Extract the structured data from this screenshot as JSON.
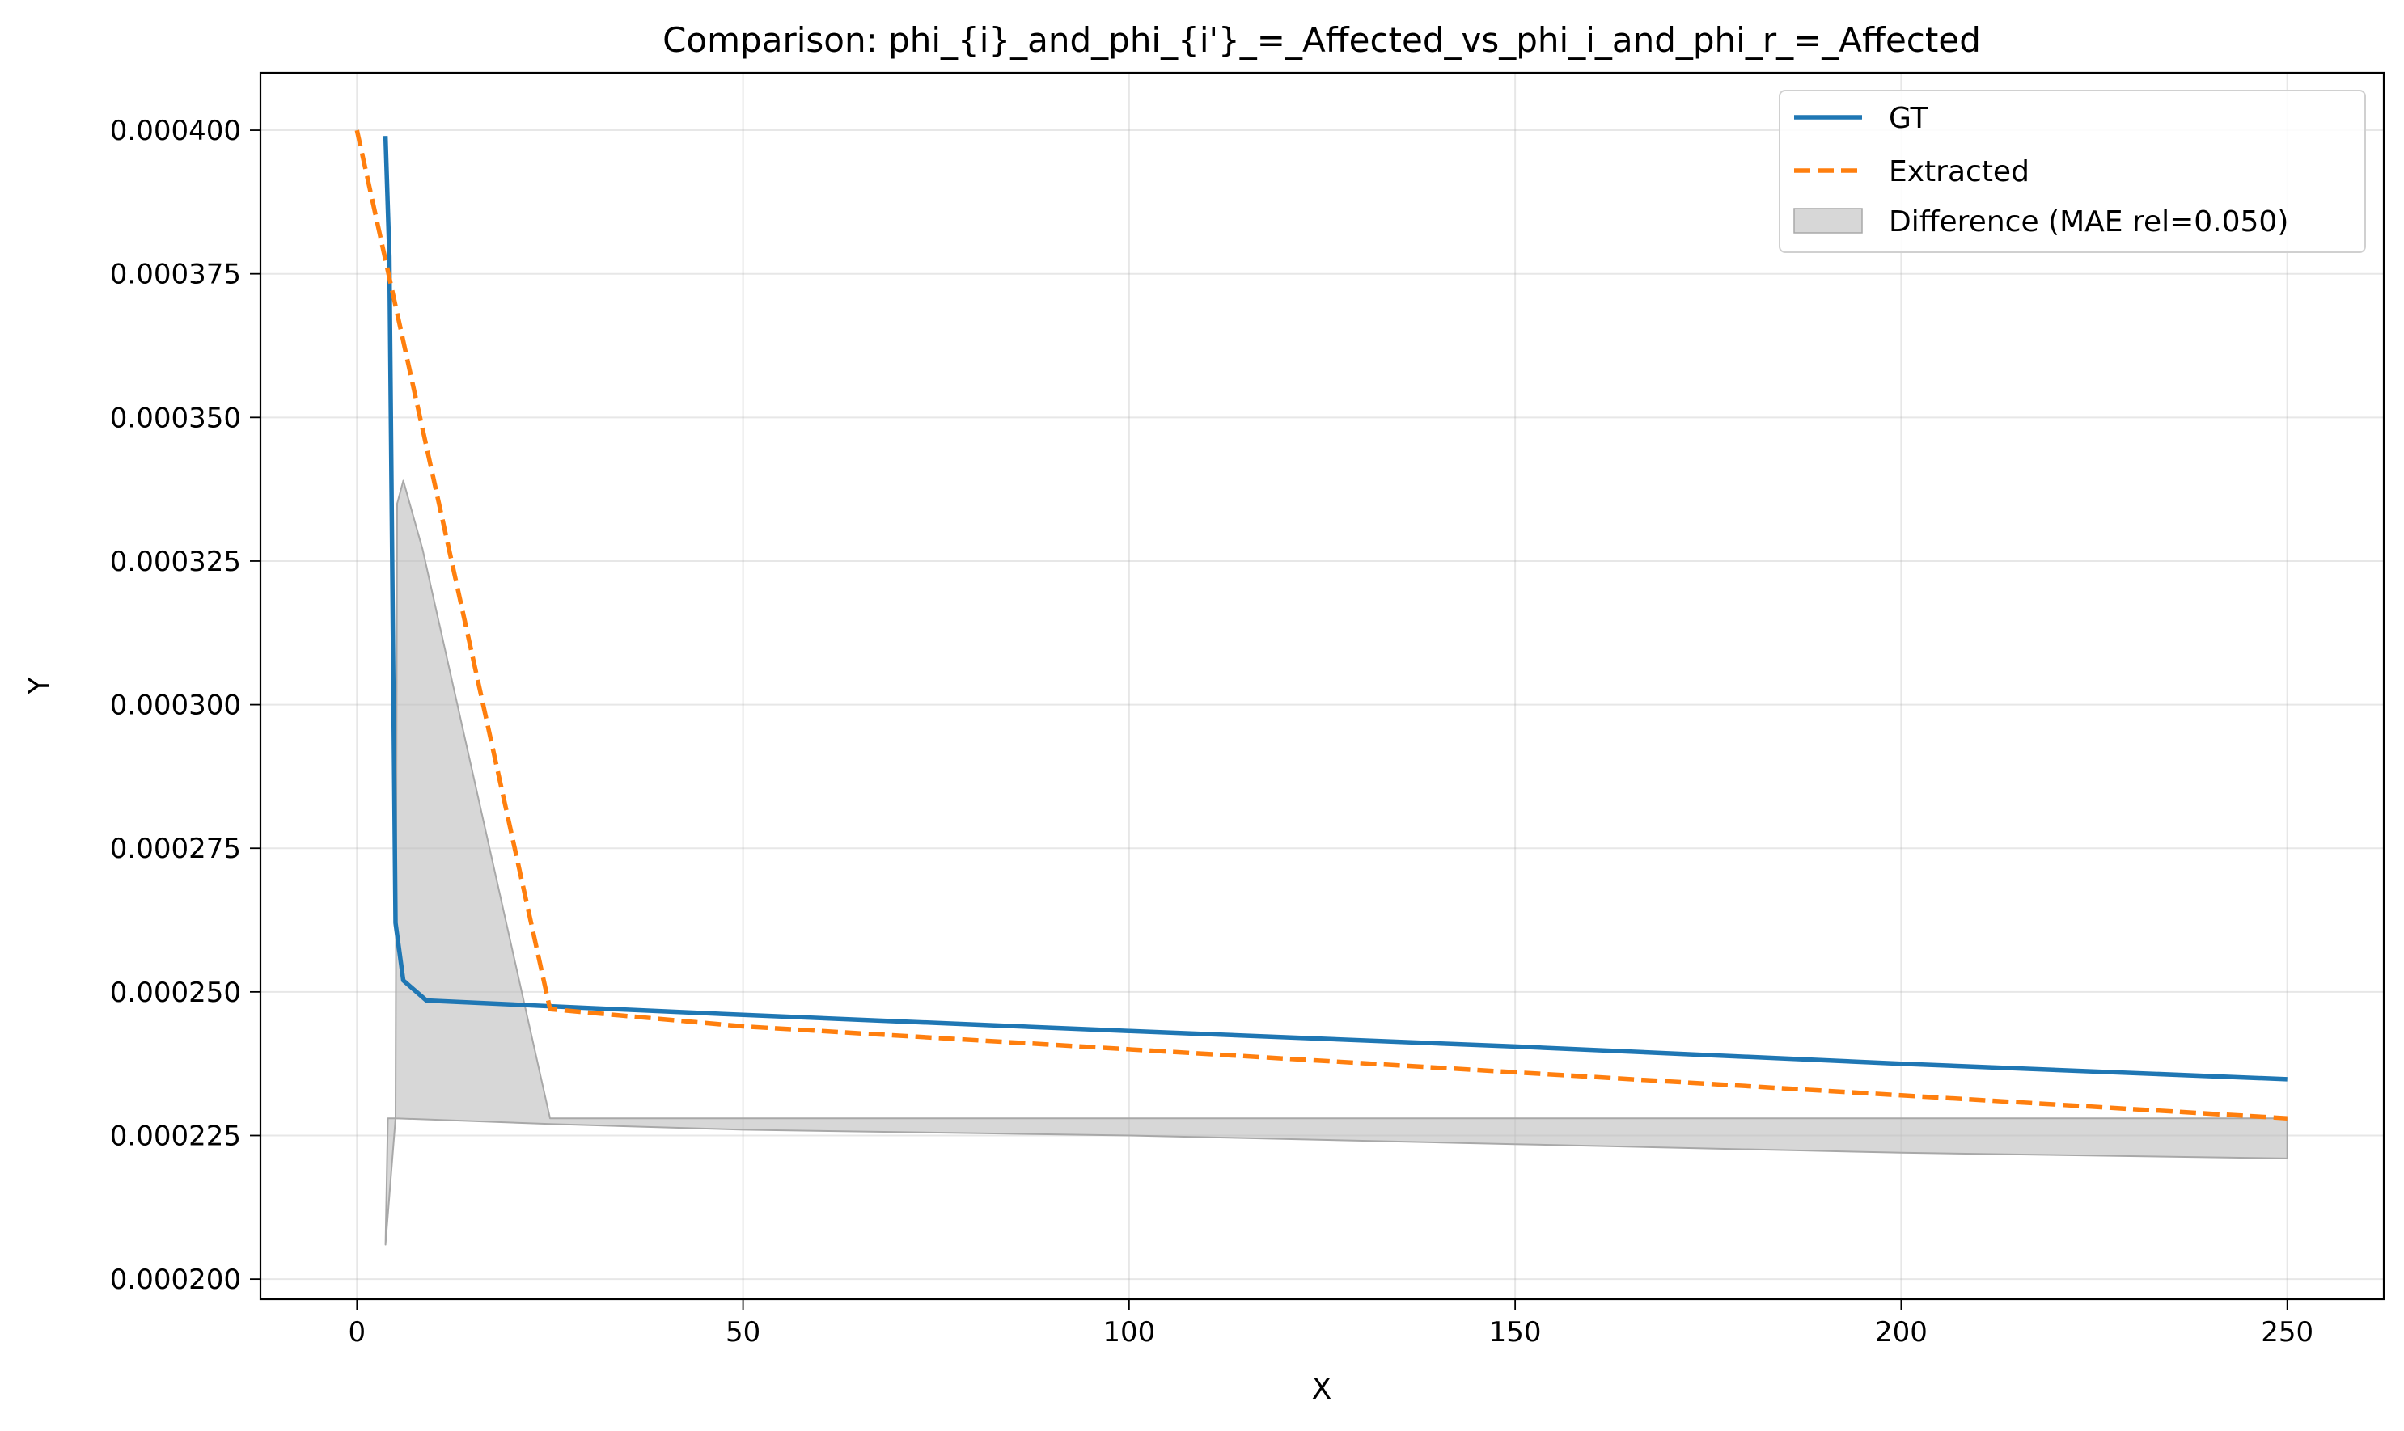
{
  "chart_data": {
    "type": "line",
    "title": "Comparison: phi_{i}_and_phi_{i'}_=_Affected_vs_phi_i_and_phi_r_=_Affected",
    "xlabel": "X",
    "ylabel": "Y",
    "xlim": [
      -12.5,
      262.5
    ],
    "ylim": [
      0.0001965,
      0.00041
    ],
    "x_ticks": [
      0,
      50,
      100,
      150,
      200,
      250
    ],
    "x_tick_labels": [
      "0",
      "50",
      "100",
      "150",
      "200",
      "250"
    ],
    "y_ticks": [
      0.0002,
      0.000225,
      0.00025,
      0.000275,
      0.0003,
      0.000325,
      0.00035,
      0.000375,
      0.0004
    ],
    "y_tick_labels": [
      "0.000200",
      "0.000225",
      "0.000250",
      "0.000275",
      "0.000300",
      "0.000325",
      "0.000350",
      "0.000375",
      "0.000400"
    ],
    "grid": true,
    "legend_position": "top-right",
    "series": [
      {
        "name": "GT",
        "color": "#1f77b4",
        "style": "solid",
        "x": [
          3.7,
          4.2,
          5,
          6,
          9,
          25,
          50,
          100,
          150,
          200,
          250
        ],
        "y": [
          0.000399,
          0.000378,
          0.000262,
          0.000252,
          0.0002485,
          0.0002475,
          0.000246,
          0.0002432,
          0.0002405,
          0.0002375,
          0.0002348
        ]
      },
      {
        "name": "Extracted",
        "color": "#ff7f0e",
        "style": "dashed",
        "x": [
          0,
          25,
          50,
          100,
          150,
          200,
          250
        ],
        "y": [
          0.0004,
          0.000247,
          0.000244,
          0.00024,
          0.000236,
          0.000232,
          0.000228
        ]
      }
    ],
    "difference_band": {
      "name": "Difference (MAE rel=0.050)",
      "color": "#bdbdbd",
      "upper": [
        [
          3.7,
          0.000206
        ],
        [
          4,
          0.000228
        ],
        [
          5,
          0.000228
        ],
        [
          5.2,
          0.000335
        ],
        [
          6,
          0.000339
        ],
        [
          8.5,
          0.000327
        ],
        [
          25,
          0.000228
        ],
        [
          250,
          0.000228
        ]
      ],
      "lower": [
        [
          250,
          0.000221
        ],
        [
          200,
          0.000222
        ],
        [
          150,
          0.0002235
        ],
        [
          100,
          0.000225
        ],
        [
          50,
          0.000226
        ],
        [
          25,
          0.000227
        ],
        [
          5,
          0.000228
        ],
        [
          3.7,
          0.000206
        ]
      ]
    }
  }
}
